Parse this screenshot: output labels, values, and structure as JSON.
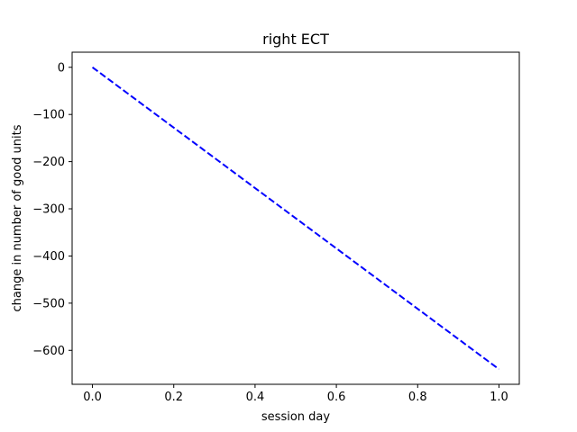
{
  "chart_data": {
    "type": "line",
    "title": "right ECT",
    "xlabel": "session day",
    "ylabel": "change in number of good units",
    "xlim": [
      -0.05,
      1.05
    ],
    "ylim": [
      -672,
      32
    ],
    "x_ticks": [
      0.0,
      0.2,
      0.4,
      0.6,
      0.8,
      1.0
    ],
    "x_tick_labels": [
      "0.0",
      "0.2",
      "0.4",
      "0.6",
      "0.8",
      "1.0"
    ],
    "y_ticks": [
      0,
      -100,
      -200,
      -300,
      -400,
      -500,
      -600
    ],
    "y_tick_labels": [
      "0",
      "−100",
      "−200",
      "−300",
      "−400",
      "−500",
      "−600"
    ],
    "grid": false,
    "series": [
      {
        "x": [
          0.0,
          1.0
        ],
        "y": [
          0,
          -640
        ],
        "color": "#0000ff",
        "line_style": "dashed"
      }
    ]
  }
}
